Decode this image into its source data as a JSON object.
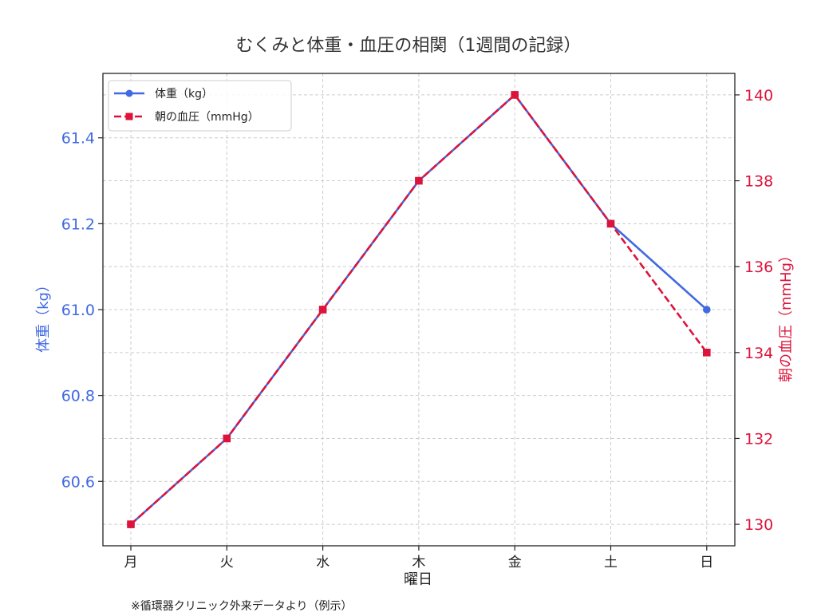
{
  "chart_data": {
    "type": "line",
    "title": "むくみと体重・血圧の相関（1週間の記録）",
    "xlabel": "曜日",
    "categories": [
      "月",
      "火",
      "水",
      "木",
      "金",
      "土",
      "日"
    ],
    "y_left": {
      "label": "体重（kg）",
      "ticks": [
        "60.6",
        "60.8",
        "61.0",
        "61.2",
        "61.4"
      ],
      "range": [
        60.45,
        61.55
      ],
      "color": "#4169E1"
    },
    "y_right": {
      "label": "朝の血圧（mmHg）",
      "ticks": [
        "130",
        "132",
        "134",
        "136",
        "138",
        "140"
      ],
      "range": [
        129.5,
        140.5
      ],
      "color": "#DC143C"
    },
    "series": [
      {
        "name": "体重（kg）",
        "axis": "left",
        "color": "#4169E1",
        "line_style": "solid",
        "marker": "circle",
        "values": [
          60.5,
          60.7,
          61.0,
          61.3,
          61.5,
          61.2,
          61.0
        ]
      },
      {
        "name": "朝の血圧（mmHg）",
        "axis": "right",
        "color": "#DC143C",
        "line_style": "dashed",
        "marker": "square",
        "values": [
          130,
          132,
          135,
          138,
          140,
          137,
          134
        ]
      }
    ],
    "grid": true,
    "legend_position": "top-left",
    "note": "※循環器クリニック外来データより（例示）"
  }
}
